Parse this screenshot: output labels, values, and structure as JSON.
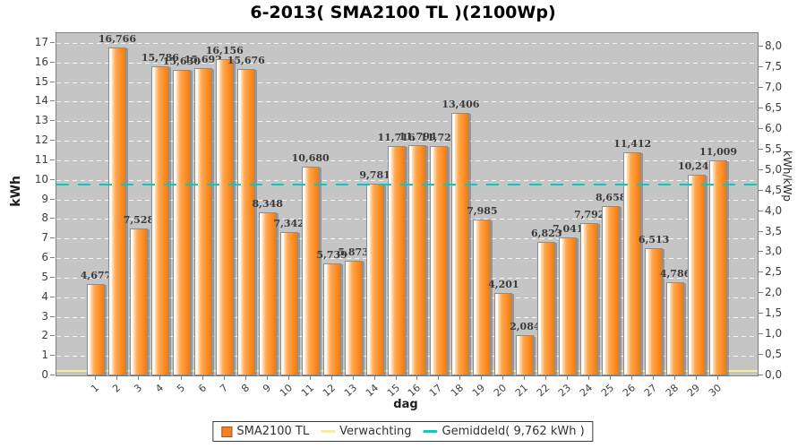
{
  "accent_colors": {
    "bar_orange": "#fd8f26",
    "expectation_yellow": "#f3ef96",
    "average_cyan": "#00ccc2",
    "plot_background": "#c5c5c5"
  },
  "legend": [
    {
      "label": "SMA2100 TL",
      "marker": "square",
      "color": "#f57f2a"
    },
    {
      "label": "Verwachting",
      "marker": "line",
      "color": "#f3ef96"
    },
    {
      "label": "Gemiddeld( 9,762 kWh )",
      "marker": "line",
      "color": "#00ccc2"
    }
  ],
  "chart_data": {
    "type": "bar",
    "title": "6-2013( SMA2100 TL )(2100Wp)",
    "xlabel": "dag",
    "ylabel_left": "kWh",
    "ylabel_right": "kWh/kWp",
    "categories": [
      "1",
      "2",
      "3",
      "4",
      "5",
      "6",
      "7",
      "8",
      "9",
      "10",
      "11",
      "12",
      "13",
      "14",
      "15",
      "16",
      "17",
      "18",
      "19",
      "20",
      "21",
      "22",
      "23",
      "24",
      "25",
      "26",
      "27",
      "28",
      "29",
      "30"
    ],
    "values": [
      4.677,
      16.766,
      7.528,
      15.786,
      15.63,
      15.692,
      16.156,
      15.676,
      8.348,
      7.342,
      10.68,
      5.739,
      5.873,
      9.781,
      11.716,
      11.794,
      11.729,
      13.406,
      7.985,
      4.201,
      2.084,
      6.823,
      7.041,
      7.792,
      8.658,
      11.412,
      6.513,
      4.786,
      10.242,
      11.009
    ],
    "bar_labels": [
      "4,677",
      "16,766",
      "7,528",
      "15,786",
      "15,630",
      "15,692",
      "16,156",
      "15,676",
      "8,348",
      "7,342",
      "10,680",
      "5,739",
      "5,873",
      "9,781",
      "11,716",
      "11,794",
      "11,729",
      "13,406",
      "7,985",
      "4,201",
      "2,084",
      "6,823",
      "7,041",
      "7,792",
      "8,658",
      "11,412",
      "6,513",
      "4,786",
      "10,242",
      "11,009"
    ],
    "values_unit": "kWh",
    "ylim_left": [
      0,
      17.5
    ],
    "y_left_ticks": [
      "0",
      "1",
      "2",
      "3",
      "4",
      "5",
      "6",
      "7",
      "8",
      "9",
      "10",
      "11",
      "12",
      "13",
      "14",
      "15",
      "16",
      "17"
    ],
    "ylim_right": [
      0,
      8.33
    ],
    "y_right_ticks": [
      "0,0",
      "0,5",
      "1,0",
      "1,5",
      "2,0",
      "2,5",
      "3,0",
      "3,5",
      "4,0",
      "4,5",
      "5,0",
      "5,5",
      "6,0",
      "6,5",
      "7,0",
      "7,5",
      "8,0"
    ],
    "kwp_factor": 2.1,
    "average_line": {
      "value": 9.762,
      "label": "Gemiddeld( 9,762 kWh )",
      "color": "#00ccc2"
    },
    "expectation_line": {
      "approx_value": 0.25,
      "label": "Verwachting",
      "color": "#f3ef96"
    },
    "grid": true,
    "legend_position": "bottom"
  }
}
